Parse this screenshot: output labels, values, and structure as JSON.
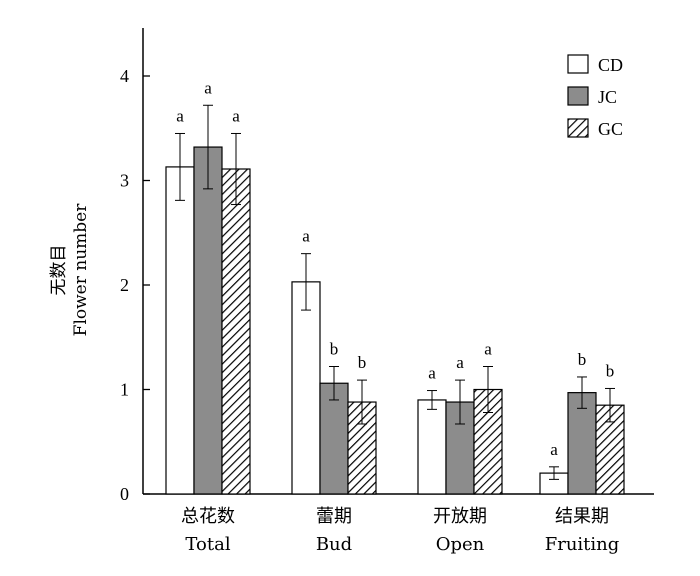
{
  "chart_data": {
    "type": "bar",
    "title": "",
    "ylabel_cn": "无数目",
    "ylabel_en": "Flower number",
    "ylim": [
      0,
      4.4
    ],
    "yticks": [
      0,
      1,
      2,
      3,
      4
    ],
    "grid": false,
    "legend_position": "top-right",
    "categories": [
      {
        "cn": "总花数",
        "en": "Total"
      },
      {
        "cn": "蕾期",
        "en": "Bud"
      },
      {
        "cn": "开放期",
        "en": "Open"
      },
      {
        "cn": "结果期",
        "en": "Fruiting"
      }
    ],
    "series": [
      {
        "name": "CD",
        "fill": "#ffffff",
        "pattern": "none",
        "values": [
          3.13,
          2.03,
          0.9,
          0.2
        ],
        "errors": [
          0.32,
          0.27,
          0.09,
          0.06
        ],
        "letters": [
          "a",
          "a",
          "a",
          "a"
        ]
      },
      {
        "name": "JC",
        "fill": "#8c8c8c",
        "pattern": "none",
        "values": [
          3.32,
          1.06,
          0.88,
          0.97
        ],
        "errors": [
          0.4,
          0.16,
          0.21,
          0.15
        ],
        "letters": [
          "a",
          "b",
          "a",
          "b"
        ]
      },
      {
        "name": "GC",
        "fill": "#ffffff",
        "pattern": "diagonal-hatch",
        "values": [
          3.11,
          0.88,
          1.0,
          0.85
        ],
        "errors": [
          0.34,
          0.21,
          0.22,
          0.16
        ],
        "letters": [
          "a",
          "b",
          "a",
          "b"
        ]
      }
    ]
  }
}
